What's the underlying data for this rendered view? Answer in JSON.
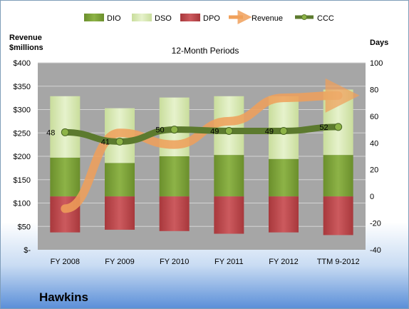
{
  "chart_data": {
    "type": "bar",
    "title": "12-Month Periods",
    "company": "Hawkins",
    "y_left_label": [
      "Revenue",
      "$millions"
    ],
    "y_right_label": "Days",
    "categories": [
      "FY 2008",
      "FY 2009",
      "FY 2010",
      "FY 2011",
      "FY 2012",
      "TTM 9-2012"
    ],
    "y_left_ticks": [
      "$-",
      "$50",
      "$100",
      "$150",
      "$200",
      "$250",
      "$300",
      "$350",
      "$400"
    ],
    "y_left_lim": [
      0,
      400
    ],
    "y_right_lim": [
      -40,
      100
    ],
    "y_right_ticks": [
      -40,
      -20,
      0,
      20,
      40,
      60,
      80,
      100
    ],
    "legend_position": "top",
    "grid": true,
    "stacked_days": {
      "DIO": [
        29,
        25,
        30,
        31,
        28,
        31
      ],
      "DSO": [
        46,
        41,
        44,
        44,
        47,
        49
      ],
      "DPO": [
        -27,
        -25,
        -26,
        -28,
        -27,
        -29
      ]
    },
    "series": [
      {
        "name": "DIO",
        "color": "#7ea23a",
        "values": [
          29,
          25,
          30,
          31,
          28,
          31
        ]
      },
      {
        "name": "DSO",
        "color": "#d9ebb5",
        "values": [
          46,
          41,
          44,
          44,
          47,
          49
        ]
      },
      {
        "name": "DPO",
        "color": "#c0474b",
        "values": [
          -27,
          -25,
          -26,
          -28,
          -27,
          -29
        ]
      },
      {
        "name": "Revenue",
        "color": "#f0a05a",
        "values": [
          88,
          250,
          225,
          275,
          325,
          330
        ]
      },
      {
        "name": "CCC",
        "color": "#5c7a2e",
        "values": [
          48,
          41,
          50,
          49,
          49,
          52
        ]
      }
    ],
    "ccc_labels": [
      "48",
      "41",
      "50",
      "49",
      "49",
      "52"
    ]
  },
  "colors": {
    "plot_bg": "#a6a6a6",
    "grid": "#d9d9d9",
    "dio": "#7ea23a",
    "dso": "#d9ebb5",
    "dpo": "#c0474b",
    "revenue": "#f0a05a",
    "ccc": "#5c7a2e"
  }
}
